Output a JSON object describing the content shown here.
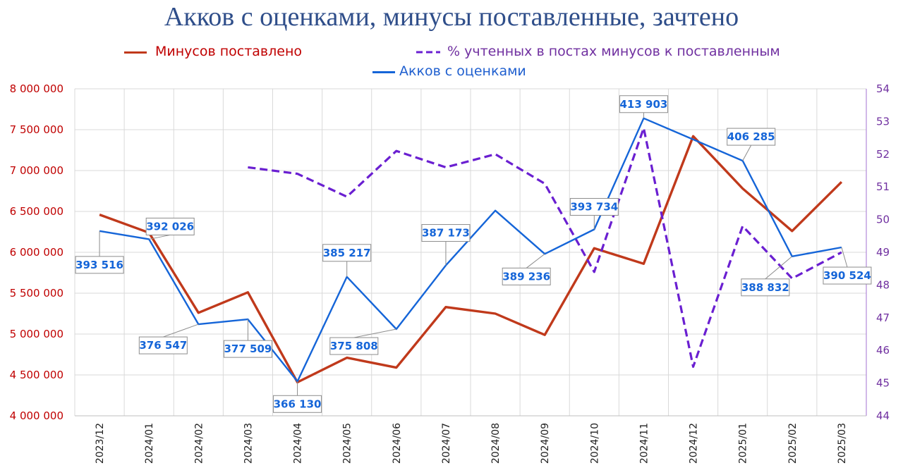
{
  "chart_data": {
    "type": "line",
    "title": "Акков с оценками, минусы поставленные, зачтено",
    "categories": [
      "2023/12",
      "2024/01",
      "2024/02",
      "2024/03",
      "2024/04",
      "2024/05",
      "2024/06",
      "2024/07",
      "2024/08",
      "2024/09",
      "2024/10",
      "2024/11",
      "2024/12",
      "2025/01",
      "2025/02",
      "2025/03"
    ],
    "y_left": {
      "ylim": [
        4000000,
        8000000
      ],
      "ticks": [
        "4 000 000",
        "4 500 000",
        "5 000 000",
        "5 500 000",
        "6 000 000",
        "6 500 000",
        "7 000 000",
        "7 500 000",
        "8 000 000"
      ],
      "color": "#c00000"
    },
    "y_right": {
      "ylim": [
        44,
        54
      ],
      "ticks": [
        "44",
        "45",
        "46",
        "47",
        "48",
        "49",
        "50",
        "51",
        "52",
        "53",
        "54"
      ],
      "color": "#7030a0"
    },
    "grid": true,
    "legend_position": "top",
    "series": [
      {
        "name": "Минусов поставлено",
        "axis": "left",
        "color": "#c0391b",
        "style": "solid",
        "values": [
          6460000,
          6240000,
          5260000,
          5510000,
          4410000,
          4710000,
          4590000,
          5330000,
          5250000,
          4990000,
          6050000,
          5860000,
          7420000,
          6780000,
          6260000,
          6860000
        ]
      },
      {
        "name": "% учтенных в постах минусов к поставленным",
        "axis": "right",
        "color": "#6a1fd1",
        "style": "dashed",
        "values": [
          null,
          null,
          null,
          51.6,
          51.4,
          50.7,
          52.1,
          51.6,
          52.0,
          51.1,
          48.4,
          52.8,
          45.5,
          49.8,
          48.2,
          49.0
        ]
      },
      {
        "name": "Акков с оценками",
        "axis": "left",
        "color": "#1565d8",
        "style": "solid",
        "values": [
          6260000,
          6160000,
          5120000,
          5180000,
          4420000,
          5700000,
          5060000,
          5840000,
          6510000,
          5980000,
          6280000,
          7640000,
          7380000,
          7120000,
          5950000,
          6060000
        ],
        "data_labels": [
          "393 516",
          "392 026",
          "376 547",
          "377 509",
          "366 130",
          "385 217",
          "375 808",
          "387 173",
          null,
          "389 236",
          "393 734",
          "413 903",
          null,
          "406 285",
          "388 832",
          "390 524"
        ]
      }
    ]
  }
}
